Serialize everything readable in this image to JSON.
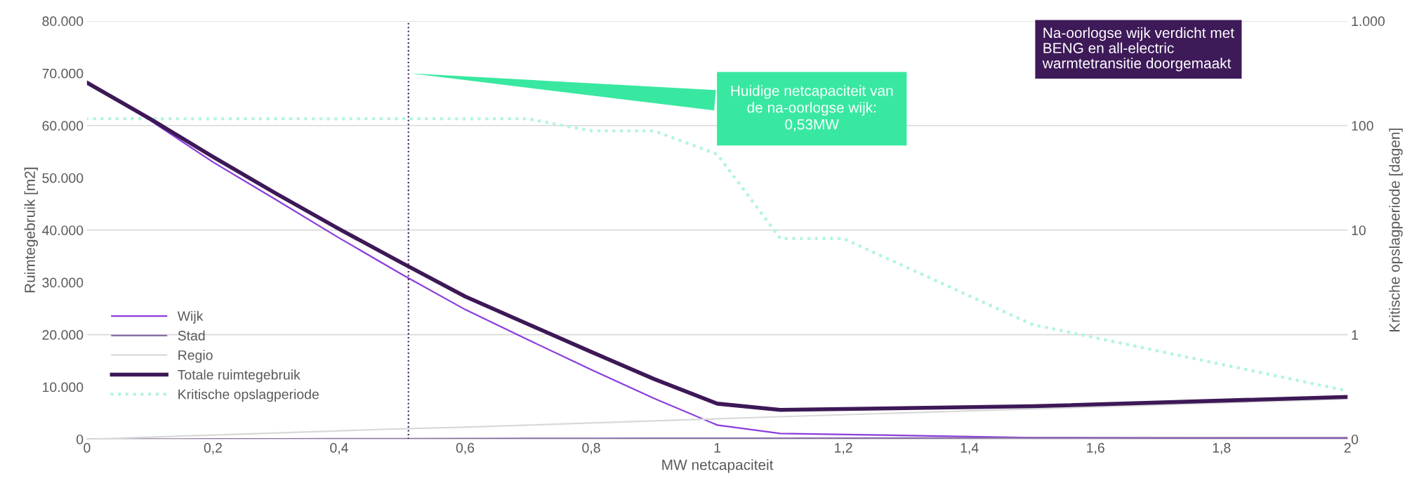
{
  "chart_data": {
    "type": "line",
    "xlabel": "MW netcapaciteit",
    "ylabel": "Ruimtegebruik [m2]",
    "y2label": "Kritische opslagperiode [dagen]",
    "x": [
      0,
      0.1,
      0.2,
      0.3,
      0.4,
      0.5,
      0.6,
      0.7,
      0.8,
      0.9,
      1.0,
      1.1,
      1.5,
      2
    ],
    "series": [
      {
        "name": "Wijk",
        "color": "#8a3ddb",
        "values": [
          68200,
          61000,
          53000,
          45800,
          38500,
          31500,
          24800,
          19000,
          13300,
          7800,
          2700,
          1100,
          300,
          100
        ]
      },
      {
        "name": "Stad",
        "color": "#8a6fa8",
        "values": [
          0,
          20,
          40,
          60,
          80,
          100,
          120,
          140,
          160,
          180,
          200,
          200,
          250,
          300
        ]
      },
      {
        "name": "Regio",
        "color": "#d9d9d9",
        "values": [
          0,
          400,
          800,
          1200,
          1600,
          2000,
          2300,
          2700,
          3100,
          3500,
          3900,
          4300,
          5800,
          7700
        ]
      },
      {
        "name": "Totale ruimtegebruik",
        "color": "#3d1856",
        "values": [
          68200,
          61300,
          54000,
          47000,
          40200,
          33700,
          27300,
          22000,
          16700,
          11500,
          6800,
          5600,
          6300,
          8100
        ]
      },
      {
        "name": "Kritische opslagperiode",
        "color": "#b5f5dc",
        "axis": "y2",
        "line_style": "dotted",
        "x": [
          0,
          0.7,
          0.8,
          0.9,
          1.0,
          1.1,
          1.2,
          1.5,
          2
        ],
        "values": [
          116,
          116,
          89,
          89,
          53,
          8.3,
          8.3,
          1.25,
          0.29
        ]
      }
    ],
    "xlim": [
      0,
      2
    ],
    "xticks": [
      0,
      {
        "value": 0.2,
        "label": "0,2"
      },
      {
        "value": 0.4,
        "label": "0,4"
      },
      {
        "value": 0.6,
        "label": "0,6"
      },
      {
        "value": 0.8,
        "label": "0,8"
      },
      1,
      {
        "value": 1.2,
        "label": "1,2"
      },
      {
        "value": 1.4,
        "label": "1,4"
      },
      {
        "value": 1.6,
        "label": "1,6"
      },
      {
        "value": 1.8,
        "label": "1,8"
      },
      2
    ],
    "ylim": [
      0,
      80000
    ],
    "yticks": [
      0,
      {
        "value": 10000,
        "label": "10.000"
      },
      {
        "value": 20000,
        "label": "20.000"
      },
      {
        "value": 30000,
        "label": "30.000"
      },
      {
        "value": 40000,
        "label": "40.000"
      },
      {
        "value": 50000,
        "label": "50.000"
      },
      {
        "value": 60000,
        "label": "60.000"
      },
      {
        "value": 70000,
        "label": "70.000"
      },
      {
        "value": 80000,
        "label": "80.000"
      }
    ],
    "log": "y2",
    "y2lim": [
      0.1,
      1000
    ],
    "y2ticks": [
      {
        "value": 0.1,
        "label": "0"
      },
      1,
      10,
      100,
      {
        "value": 1000,
        "label": "1.000"
      }
    ],
    "ref_lines": [
      {
        "axis": "x",
        "value": 0.51,
        "color": "#3d1856",
        "line_style": "dotted"
      }
    ],
    "annotations": [
      {
        "text": "Huidige netcapaciteit van\nde na-oorlogse wijk:\n0,53MW",
        "x": 0.51,
        "y": 70000
      },
      "Na-oorlogse wijk verdicht met\nBENG en all-electric\nwarmtetransitie doorgemaakt"
    ],
    "grid": "y",
    "legend": "bottom left",
    "marker": "none"
  }
}
